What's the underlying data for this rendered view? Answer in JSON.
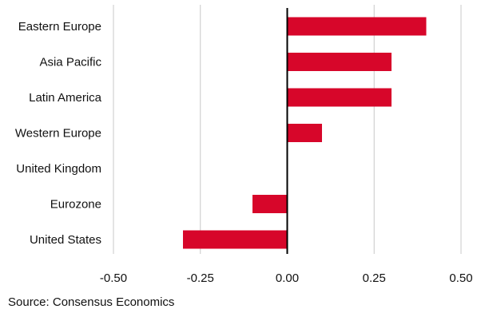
{
  "chart_data": {
    "type": "bar",
    "orientation": "horizontal",
    "categories": [
      "Eastern Europe",
      "Asia Pacific",
      "Latin America",
      "Western Europe",
      "United Kingdom",
      "Eurozone",
      "United States"
    ],
    "values": [
      0.4,
      0.3,
      0.3,
      0.1,
      0.0,
      -0.1,
      -0.3
    ],
    "xlim": [
      -0.5,
      0.5
    ],
    "xticks": [
      -0.5,
      -0.25,
      0.0,
      0.25,
      0.5
    ],
    "tick_labels": [
      "-0.50",
      "-0.25",
      "0.00",
      "0.25",
      "0.50"
    ],
    "grid": "vertical",
    "bar_color": "#d7062a"
  },
  "source": "Source: Consensus Economics"
}
